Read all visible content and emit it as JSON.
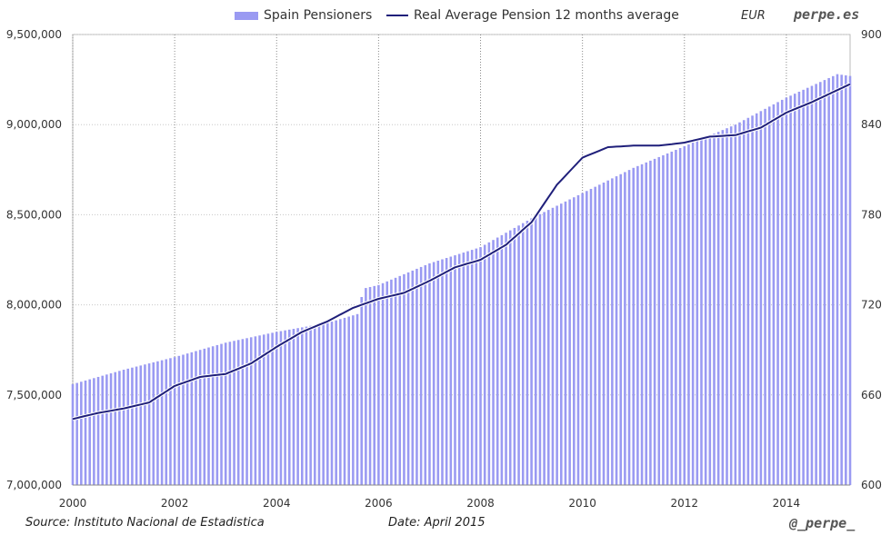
{
  "header": {
    "unit_label": "EUR",
    "brand": "perpe.es"
  },
  "footer": {
    "source": "Source: Instituto Nacional de Estadistica",
    "date": "Date: April 2015",
    "handle": "@_perpe_"
  },
  "colors": {
    "bars": "#9a9af2",
    "line": "#1f1f7a",
    "grid": "#c8c8c8",
    "axis_text": "#333333"
  },
  "chart_data": {
    "type": "bar",
    "title": "",
    "xlabel": "",
    "ylabel": "",
    "grid": true,
    "legend_position": "top",
    "x_ticks": [
      "2000",
      "2002",
      "2004",
      "2006",
      "2008",
      "2010",
      "2012",
      "2014"
    ],
    "y_left_ticks": [
      "7,000,000",
      "7,500,000",
      "8,000,000",
      "8,500,000",
      "9,000,000",
      "9,500,000"
    ],
    "y_right_ticks": [
      "600",
      "660",
      "720",
      "780",
      "840",
      "900"
    ],
    "ylim_left": [
      7000000,
      9500000
    ],
    "ylim_right": [
      600,
      900
    ],
    "xlim": [
      2000.0,
      2015.25
    ],
    "bar_frequency": "monthly",
    "series": [
      {
        "name": "Spain Pensioners",
        "type": "bar",
        "axis": "left",
        "points": [
          [
            2000.0,
            7560000
          ],
          [
            2001.0,
            7640000
          ],
          [
            2002.0,
            7710000
          ],
          [
            2003.0,
            7790000
          ],
          [
            2004.0,
            7850000
          ],
          [
            2005.0,
            7900000
          ],
          [
            2005.6,
            7950000
          ],
          [
            2005.7,
            8090000
          ],
          [
            2006.0,
            8110000
          ],
          [
            2007.0,
            8230000
          ],
          [
            2008.0,
            8320000
          ],
          [
            2009.0,
            8480000
          ],
          [
            2010.0,
            8620000
          ],
          [
            2011.0,
            8760000
          ],
          [
            2012.0,
            8880000
          ],
          [
            2013.0,
            9000000
          ],
          [
            2014.0,
            9150000
          ],
          [
            2015.0,
            9280000
          ],
          [
            2015.25,
            9270000
          ]
        ]
      },
      {
        "name": "Real Average Pension 12 months average",
        "type": "line",
        "axis": "right",
        "points": [
          [
            2000.0,
            644
          ],
          [
            2000.5,
            648
          ],
          [
            2001.0,
            651
          ],
          [
            2001.5,
            655
          ],
          [
            2002.0,
            666
          ],
          [
            2002.5,
            672
          ],
          [
            2003.0,
            674
          ],
          [
            2003.5,
            681
          ],
          [
            2004.0,
            692
          ],
          [
            2004.5,
            702
          ],
          [
            2005.0,
            709
          ],
          [
            2005.5,
            718
          ],
          [
            2006.0,
            724
          ],
          [
            2006.5,
            728
          ],
          [
            2007.0,
            736
          ],
          [
            2007.5,
            745
          ],
          [
            2008.0,
            750
          ],
          [
            2008.5,
            760
          ],
          [
            2009.0,
            775
          ],
          [
            2009.5,
            800
          ],
          [
            2010.0,
            818
          ],
          [
            2010.5,
            825
          ],
          [
            2011.0,
            826
          ],
          [
            2011.5,
            826
          ],
          [
            2012.0,
            828
          ],
          [
            2012.5,
            832
          ],
          [
            2013.0,
            833
          ],
          [
            2013.5,
            838
          ],
          [
            2014.0,
            848
          ],
          [
            2014.5,
            855
          ],
          [
            2015.0,
            863
          ],
          [
            2015.25,
            867
          ]
        ]
      }
    ]
  }
}
